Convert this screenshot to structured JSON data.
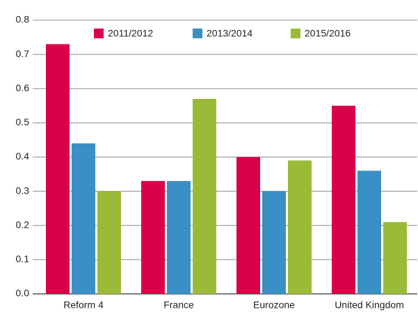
{
  "chart_data": {
    "type": "bar",
    "categories": [
      "Reform 4",
      "France",
      "Eurozone",
      "United Kingdom"
    ],
    "series": [
      {
        "name": "2011/2012",
        "color": "#d9004c",
        "values": [
          0.73,
          0.33,
          0.4,
          0.55
        ]
      },
      {
        "name": "2013/2014",
        "color": "#3a8fc4",
        "values": [
          0.44,
          0.33,
          0.3,
          0.36
        ]
      },
      {
        "name": "2015/2016",
        "color": "#9bbb38",
        "values": [
          0.3,
          0.57,
          0.39,
          0.21
        ]
      }
    ],
    "ylim": [
      0,
      0.8
    ],
    "yticks": [
      {
        "value": 0,
        "label": "0.0"
      },
      0.1,
      0.2,
      0.3,
      0.4,
      0.5,
      0.6,
      0.7,
      0.8
    ],
    "grid": true,
    "legend": "top"
  }
}
